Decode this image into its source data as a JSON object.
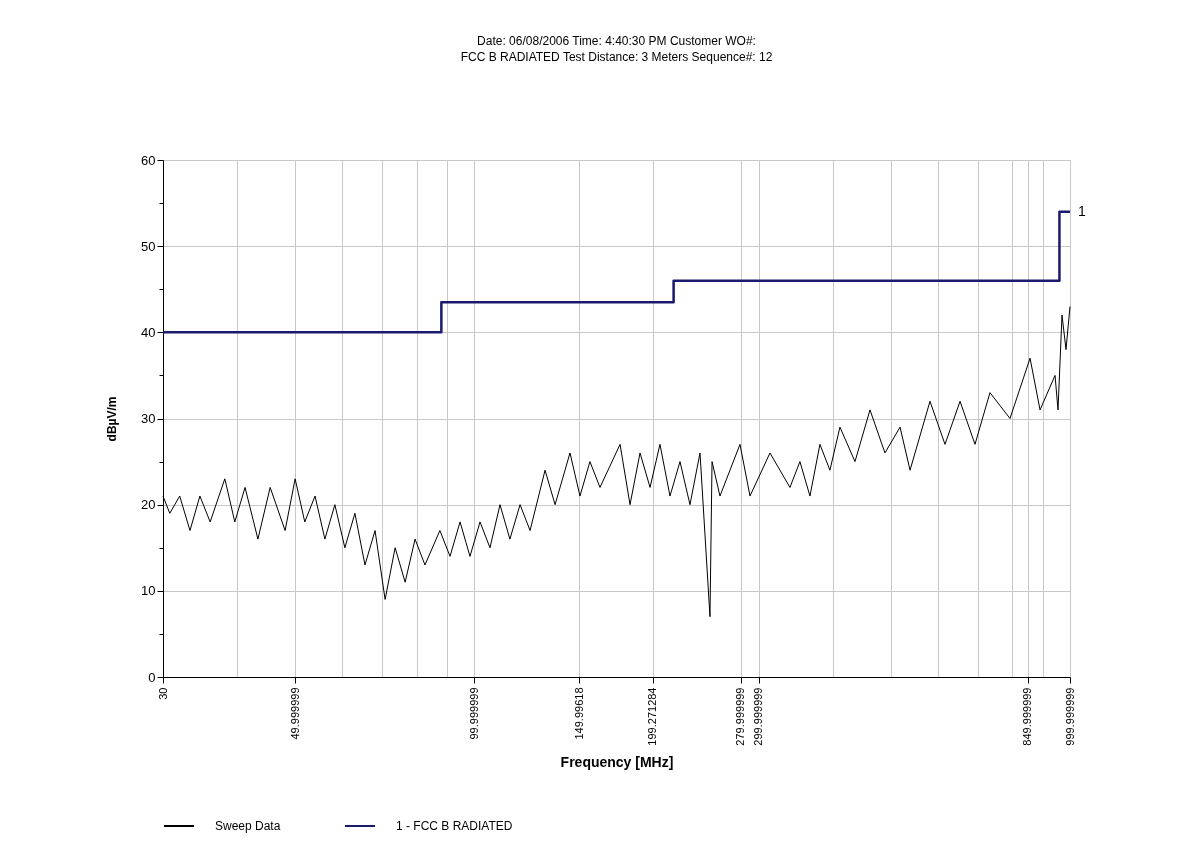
{
  "chart_data": {
    "type": "line",
    "title": "Date:  06/08/2006  Time: 4:40:30 PM  Customer WO#:",
    "subtitle": "FCC B RADIATED  Test Distance: 3 Meters  Sequence#: 12",
    "xlabel": "Frequency [MHz]",
    "ylabel": "dBµV/m",
    "log": "x",
    "grid": true,
    "legend": "bottom",
    "xlim": [
      30,
      1000
    ],
    "ylim": [
      0,
      60
    ],
    "xticks": [
      30,
      {
        "value": 40,
        "label": null
      },
      49.999999,
      {
        "value": 60,
        "label": null
      },
      {
        "value": 70,
        "label": null
      },
      {
        "value": 80,
        "label": null
      },
      {
        "value": 90,
        "label": null
      },
      99.999999,
      149.99618,
      199.271284,
      279.999999,
      299.999999,
      {
        "value": 400,
        "label": null
      },
      {
        "value": 500,
        "label": null
      },
      {
        "value": 600,
        "label": null
      },
      {
        "value": 700,
        "label": null
      },
      {
        "value": 800,
        "label": null
      },
      849.999999,
      {
        "value": 900,
        "label": null
      },
      999.999999
    ],
    "yticks": [
      0,
      {
        "value": 5,
        "label": null
      },
      10,
      {
        "value": 15,
        "label": null
      },
      20,
      {
        "value": 25,
        "label": null
      },
      30,
      {
        "value": 35,
        "label": null
      },
      40,
      {
        "value": 45,
        "label": null
      },
      50,
      {
        "value": 55,
        "label": null
      },
      60
    ],
    "annotations": [
      {
        "text": "1",
        "x": 1000,
        "y": 54
      }
    ],
    "series": [
      {
        "name": "Sweep Data",
        "color": "#000000",
        "x": [
          30,
          30.8,
          32.0,
          33.3,
          34.6,
          36.0,
          38.1,
          39.6,
          41.2,
          43.3,
          45.4,
          48.1,
          50.0,
          51.9,
          54.0,
          56.1,
          58.3,
          60.6,
          63.0,
          65.5,
          68.1,
          70.8,
          73.6,
          76.5,
          79.5,
          82.6,
          87.5,
          91.0,
          94.6,
          98.3,
          102.2,
          106.2,
          110.4,
          114.7,
          119.3,
          124.0,
          131.4,
          136.6,
          144.7,
          150.4,
          156.3,
          162.5,
          175.6,
          182.5,
          189.7,
          197.2,
          204.9,
          213.0,
          221.4,
          230.1,
          239.2,
          248.6,
          250.6,
          258.4,
          279.2,
          290.2,
          313.5,
          338.7,
          352.0,
          365.9,
          380.3,
          395.3,
          410.9,
          435.5,
          461.5,
          489.0,
          518.4,
          538.8,
          582.0,
          616.8,
          653.7,
          692.6,
          733.9,
          793.0,
          856.9,
          890.6,
          943.8,
          954.7,
          969.6,
          984.7,
          1000
        ],
        "values": [
          21,
          19,
          21,
          17,
          21,
          18,
          23,
          18,
          22,
          16,
          22,
          17,
          23,
          18,
          21,
          16,
          20,
          15,
          19,
          13,
          17,
          9,
          15,
          11,
          16,
          13,
          17,
          14,
          18,
          14,
          18,
          15,
          20,
          16,
          20,
          17,
          24,
          20,
          26,
          21,
          25,
          22,
          27,
          20,
          26,
          22,
          27,
          21,
          25,
          20,
          26,
          7,
          25,
          21,
          27,
          21,
          26,
          22,
          25,
          21,
          27,
          24,
          29,
          25,
          31,
          26,
          29,
          24,
          32,
          27,
          32,
          27,
          33,
          30,
          37,
          31,
          35,
          31,
          42,
          38,
          43
        ]
      },
      {
        "name": "1 - FCC B RADIATED",
        "color": "#1a1a6e",
        "type": "step",
        "x": [
          30,
          88,
          216,
          960,
          1000
        ],
        "values": [
          40,
          43.5,
          46,
          54,
          54
        ]
      }
    ]
  }
}
